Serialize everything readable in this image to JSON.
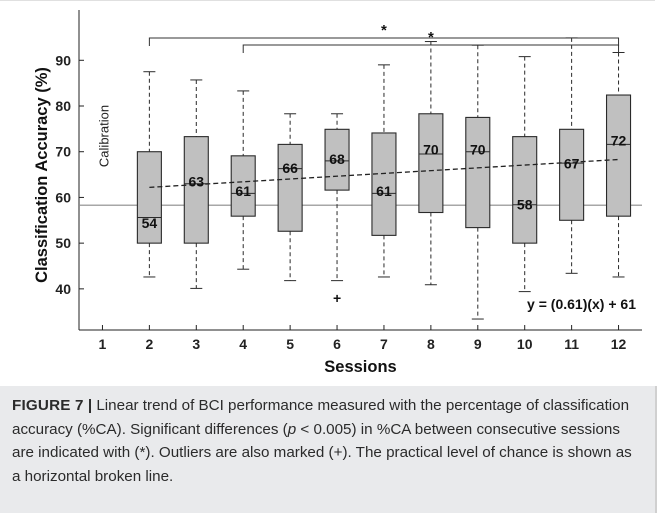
{
  "chart_data": {
    "type": "box",
    "xlabel": "Sessions",
    "ylabel": "Classification Accuracy (%)",
    "categories": [
      "1",
      "2",
      "3",
      "4",
      "5",
      "6",
      "7",
      "8",
      "9",
      "10",
      "11",
      "12"
    ],
    "x_ticks": [
      "1",
      "2",
      "3",
      "4",
      "5",
      "6",
      "7",
      "8",
      "9",
      "10",
      "11",
      "12"
    ],
    "y_ticks": [
      "40",
      "50",
      "60",
      "70",
      "80",
      "90"
    ],
    "ylim": [
      31,
      101
    ],
    "boxes": [
      {
        "session": "2",
        "min": 42.6,
        "q1": 50.0,
        "median": 55.6,
        "q3": 70.0,
        "max": 87.5,
        "mean_label": "54",
        "outliers": []
      },
      {
        "session": "3",
        "min": 40.1,
        "q1": 50.0,
        "median": 63.0,
        "q3": 73.3,
        "max": 85.7,
        "mean_label": "63",
        "outliers": []
      },
      {
        "session": "4",
        "min": 44.3,
        "q1": 55.9,
        "median": 60.9,
        "q3": 69.1,
        "max": 83.3,
        "mean_label": "61",
        "outliers": []
      },
      {
        "session": "5",
        "min": 41.8,
        "q1": 52.6,
        "median": 66.3,
        "q3": 71.6,
        "max": 78.3,
        "mean_label": "66",
        "outliers": []
      },
      {
        "session": "6",
        "min": 41.8,
        "q1": 61.6,
        "median": 68.0,
        "q3": 74.9,
        "max": 78.3,
        "mean_label": "68",
        "outliers": [
          38.0
        ]
      },
      {
        "session": "7",
        "min": 42.6,
        "q1": 51.7,
        "median": 60.9,
        "q3": 74.1,
        "max": 89.0,
        "mean_label": "61",
        "outliers": []
      },
      {
        "session": "8",
        "min": 40.9,
        "q1": 56.7,
        "median": 69.5,
        "q3": 78.3,
        "max": 94.1,
        "mean_label": "70",
        "outliers": []
      },
      {
        "session": "9",
        "min": 33.4,
        "q1": 53.4,
        "median": 70.0,
        "q3": 77.5,
        "max": 93.3,
        "mean_label": "70",
        "outliers": []
      },
      {
        "session": "10",
        "min": 39.4,
        "q1": 50.0,
        "median": 58.4,
        "q3": 73.3,
        "max": 90.8,
        "mean_label": "58",
        "outliers": []
      },
      {
        "session": "11",
        "min": 43.4,
        "q1": 55.0,
        "median": 67.5,
        "q3": 74.9,
        "max": 94.9,
        "mean_label": "67",
        "outliers": []
      },
      {
        "session": "12",
        "min": 42.6,
        "q1": 55.9,
        "median": 71.6,
        "q3": 82.4,
        "max": 91.7,
        "mean_label": "72",
        "outliers": []
      }
    ],
    "chance_level": 58.3,
    "trend": {
      "x": [
        2,
        12
      ],
      "y": [
        62.2,
        68.3
      ],
      "equation": "y = (0.61)(x) + 61"
    },
    "calibration_label": "Calibration",
    "significance": [
      {
        "from": "2",
        "to": "12",
        "label": "*"
      },
      {
        "from": "4",
        "to": "12",
        "label": "*"
      }
    ],
    "colors": {
      "box_fill": "#c0c0c0",
      "box_stroke": "#2a2a2a",
      "chance_line": "#8a8a8a",
      "axis": "#222222"
    }
  },
  "caption": {
    "label": "FIGURE 7",
    "separator": "|",
    "text_part1": " Linear trend of BCI performance measured with the percentage of classification accuracy (%CA). Significant differences (",
    "p_symbol": "p",
    "text_part2": " < 0.005) in %CA between consecutive sessions are indicated with (*). Outliers are also marked (+). The practical level of chance is shown as a horizontal broken line."
  }
}
